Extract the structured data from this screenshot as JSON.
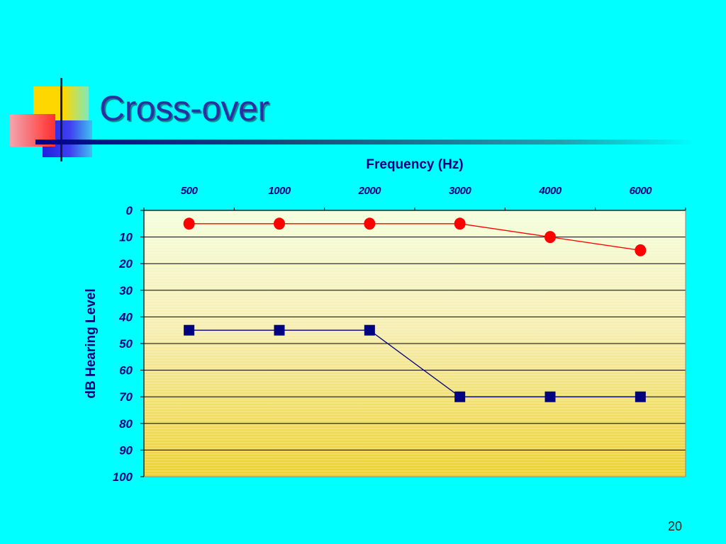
{
  "slide": {
    "title": "Cross-over",
    "page_number": "20"
  },
  "colors": {
    "background": "#00FFFF",
    "title": "#2B2FA0",
    "axis_text": "#000080",
    "series_circle": "#FF0000",
    "series_square": "#000080"
  },
  "chart_data": {
    "type": "line",
    "xlabel": "Frequency (Hz)",
    "ylabel": "dB Hearing Level",
    "categories": [
      "500",
      "1000",
      "2000",
      "3000",
      "4000",
      "6000"
    ],
    "y_ticks": [
      "0",
      "10",
      "20",
      "30",
      "40",
      "50",
      "60",
      "70",
      "80",
      "90",
      "100"
    ],
    "ylim": [
      0,
      100
    ],
    "y_reversed": true,
    "x_axis_position": "top",
    "grid": true,
    "series": [
      {
        "marker": "circle",
        "color": "#FF0000",
        "values": [
          5,
          5,
          5,
          5,
          10,
          15
        ]
      },
      {
        "marker": "square",
        "color": "#000080",
        "values": [
          45,
          45,
          45,
          70,
          70,
          70
        ]
      }
    ]
  }
}
